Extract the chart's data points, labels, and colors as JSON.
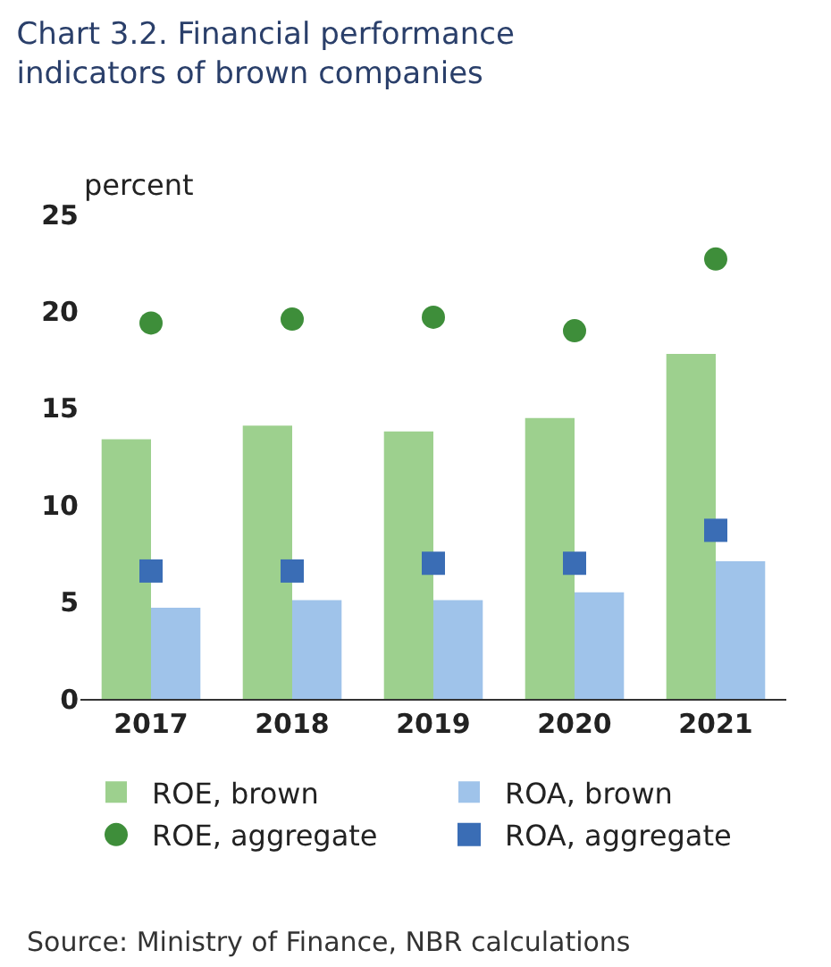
{
  "chart_data": {
    "type": "bar",
    "title": "Chart 3.2. Financial performance indicators of brown companies",
    "ylabel": "percent",
    "categories": [
      "2017",
      "2018",
      "2019",
      "2020",
      "2021"
    ],
    "series": [
      {
        "name": "ROE, brown",
        "color": "#9dd08e",
        "values": [
          13.4,
          14.1,
          13.8,
          14.5,
          17.8
        ]
      },
      {
        "name": "ROA, brown",
        "color": "#9fc3ea",
        "values": [
          4.7,
          5.1,
          5.1,
          5.5,
          7.1
        ]
      },
      {
        "name": "ROE, aggregate",
        "type": "scatter",
        "marker": "circle",
        "color": "#3e8e3a",
        "values": [
          19.4,
          19.6,
          19.7,
          19.0,
          22.7
        ]
      },
      {
        "name": "ROA, aggregate",
        "type": "scatter",
        "marker": "square",
        "color": "#3a6db5",
        "values": [
          6.6,
          6.6,
          7.0,
          7.0,
          8.7
        ]
      }
    ],
    "ylim": [
      0,
      25
    ],
    "yticks": [
      0,
      5,
      10,
      15,
      20,
      25
    ],
    "grid": false,
    "legend": "bottom",
    "annotations": [
      "Source: Ministry of Finance, NBR calculations"
    ]
  }
}
